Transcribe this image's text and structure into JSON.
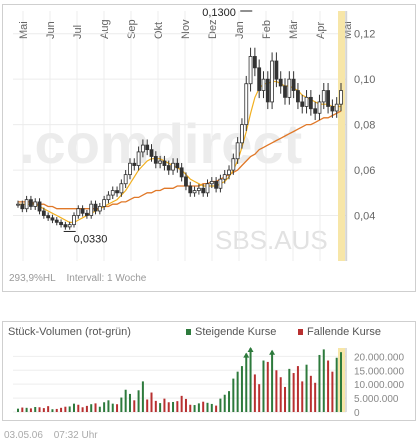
{
  "footer": {
    "hl": "293,9%HL",
    "interval": "Intervall: 1 Woche"
  },
  "timestamp": {
    "date": "03.05.06",
    "time": "07:32 Uhr"
  },
  "watermark": {
    "brand": ".comdirect",
    "symbol": "SBS.AUS"
  },
  "volume_header": {
    "title": "Stück-Volumen (rot-grün)",
    "legend_up": "Steigende Kurse",
    "legend_down": "Fallende Kurse"
  },
  "colors": {
    "up": "#2d7a3c",
    "down": "#b83030",
    "ma_short": "#f2b020",
    "ma_long": "#e07828",
    "highlight": "#f7e6a8",
    "candle": "#333333"
  },
  "chart_data": [
    {
      "type": "candlestick",
      "months": [
        "Mai",
        "Jun",
        "Jul",
        "Aug",
        "Sep",
        "Okt",
        "Nov",
        "Dez",
        "Jan",
        "Feb",
        "Mär",
        "Apr",
        "Mai"
      ],
      "ylim": [
        0.02,
        0.13
      ],
      "yticks": [
        "0,12",
        "0,10",
        "0,08",
        "0,06",
        "0,04"
      ],
      "ytick_values": [
        0.12,
        0.1,
        0.08,
        0.06,
        0.04
      ],
      "annotations": [
        {
          "label": "0,1300",
          "value": 0.13,
          "week": 53
        },
        {
          "label": "0,0330",
          "value": 0.033,
          "week": 12
        }
      ],
      "weekly_close": [
        0.045,
        0.043,
        0.047,
        0.044,
        0.046,
        0.042,
        0.04,
        0.039,
        0.038,
        0.037,
        0.036,
        0.035,
        0.036,
        0.04,
        0.043,
        0.041,
        0.04,
        0.045,
        0.042,
        0.044,
        0.047,
        0.049,
        0.051,
        0.05,
        0.054,
        0.058,
        0.063,
        0.062,
        0.068,
        0.071,
        0.069,
        0.066,
        0.063,
        0.064,
        0.062,
        0.06,
        0.063,
        0.061,
        0.057,
        0.053,
        0.05,
        0.051,
        0.052,
        0.05,
        0.054,
        0.055,
        0.052,
        0.056,
        0.058,
        0.06,
        0.065,
        0.072,
        0.08,
        0.098,
        0.11,
        0.105,
        0.095,
        0.1,
        0.09,
        0.108,
        0.1,
        0.097,
        0.092,
        0.1,
        0.095,
        0.09,
        0.088,
        0.092,
        0.087,
        0.085,
        0.09,
        0.095,
        0.088,
        0.086,
        0.089,
        0.095
      ],
      "ma_short": [
        0.045,
        0.045,
        0.045,
        0.045,
        0.045,
        0.044,
        0.043,
        0.042,
        0.041,
        0.04,
        0.039,
        0.038,
        0.037,
        0.037,
        0.038,
        0.039,
        0.04,
        0.041,
        0.042,
        0.043,
        0.044,
        0.045,
        0.046,
        0.047,
        0.049,
        0.051,
        0.054,
        0.057,
        0.06,
        0.062,
        0.064,
        0.065,
        0.065,
        0.065,
        0.064,
        0.063,
        0.062,
        0.061,
        0.06,
        0.058,
        0.056,
        0.055,
        0.054,
        0.053,
        0.053,
        0.053,
        0.053,
        0.054,
        0.055,
        0.057,
        0.06,
        0.064,
        0.07,
        0.077,
        0.085,
        0.092,
        0.096,
        0.098,
        0.098,
        0.099,
        0.099,
        0.098,
        0.097,
        0.097,
        0.096,
        0.095,
        0.093,
        0.092,
        0.091,
        0.09,
        0.089,
        0.089,
        0.089,
        0.088,
        0.088,
        0.088
      ],
      "ma_long": [
        0.046,
        0.046,
        0.046,
        0.046,
        0.045,
        0.045,
        0.045,
        0.044,
        0.044,
        0.043,
        0.043,
        0.043,
        0.043,
        0.043,
        0.043,
        0.043,
        0.043,
        0.043,
        0.043,
        0.043,
        0.044,
        0.044,
        0.045,
        0.045,
        0.046,
        0.046,
        0.047,
        0.048,
        0.048,
        0.049,
        0.05,
        0.05,
        0.051,
        0.051,
        0.052,
        0.052,
        0.052,
        0.053,
        0.053,
        0.053,
        0.053,
        0.053,
        0.053,
        0.054,
        0.054,
        0.055,
        0.055,
        0.056,
        0.057,
        0.058,
        0.059,
        0.06,
        0.062,
        0.064,
        0.066,
        0.067,
        0.069,
        0.07,
        0.071,
        0.072,
        0.073,
        0.074,
        0.075,
        0.076,
        0.077,
        0.078,
        0.079,
        0.08,
        0.08,
        0.081,
        0.082,
        0.083,
        0.083,
        0.084,
        0.085,
        0.086
      ]
    },
    {
      "type": "bar",
      "title": "Stück-Volumen (rot-grün)",
      "ylim": [
        0,
        23000000
      ],
      "yticks": [
        "20.000.000",
        "15.000.000",
        "10.000.000",
        "5.000.000",
        "0"
      ],
      "ytick_values": [
        20000000,
        15000000,
        10000000,
        5000000,
        0
      ],
      "series": [
        {
          "name": "Steigende Kurse",
          "values": [
            1200000,
            0,
            1500000,
            0,
            1800000,
            0,
            0,
            0,
            1000000,
            0,
            0,
            0,
            2000000,
            3000000,
            0,
            0,
            0,
            2800000,
            0,
            1900000,
            3500000,
            4200000,
            3000000,
            0,
            5200000,
            8000000,
            6500000,
            0,
            7800000,
            11000000,
            0,
            0,
            0,
            3200000,
            0,
            0,
            3600000,
            0,
            0,
            0,
            0,
            2500000,
            3100000,
            0,
            3300000,
            2900000,
            0,
            4800000,
            6200000,
            7500000,
            12000000,
            14500000,
            16500000,
            21000000,
            23000000,
            0,
            0,
            18500000,
            0,
            22000000,
            0,
            0,
            0,
            15500000,
            0,
            0,
            0,
            17000000,
            0,
            0,
            20500000,
            22500000,
            0,
            0,
            19500000,
            21500000
          ]
        },
        {
          "name": "Fallende Kurse",
          "values": [
            0,
            1600000,
            0,
            1300000,
            0,
            1700000,
            1400000,
            2100000,
            0,
            1100000,
            1500000,
            1900000,
            0,
            0,
            2600000,
            1700000,
            2200000,
            0,
            3100000,
            0,
            0,
            0,
            0,
            2800000,
            0,
            0,
            0,
            4200000,
            0,
            0,
            4500000,
            7000000,
            4000000,
            0,
            4800000,
            3500000,
            0,
            3900000,
            5800000,
            4700000,
            2600000,
            0,
            0,
            3700000,
            0,
            0,
            2300000,
            0,
            0,
            0,
            0,
            0,
            0,
            0,
            0,
            13500000,
            10000000,
            0,
            18000000,
            0,
            15000000,
            12500000,
            9000000,
            0,
            14000000,
            16500000,
            11000000,
            0,
            13000000,
            10500000,
            0,
            0,
            18500000,
            14500000,
            0,
            0
          ]
        }
      ]
    }
  ]
}
